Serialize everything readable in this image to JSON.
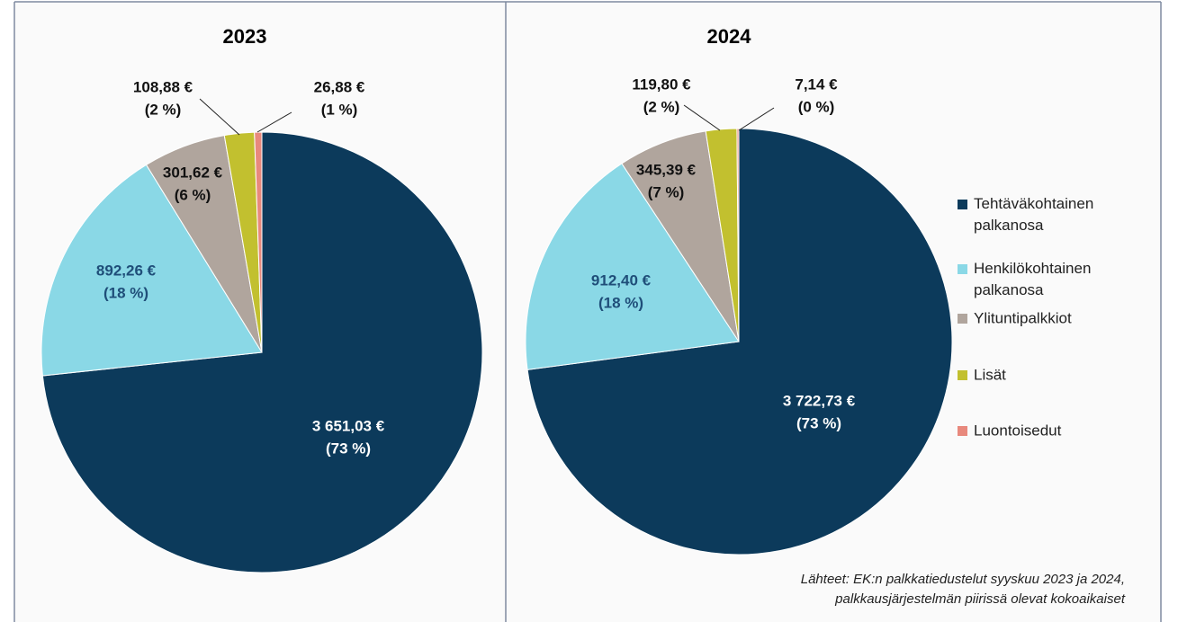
{
  "chart_data": [
    {
      "type": "pie",
      "title": "2023",
      "values": [
        3651.03,
        892.26,
        301.62,
        108.88,
        26.88
      ],
      "value_labels": [
        "3 651,03 €",
        "892,26 €",
        "301,62 €",
        "108,88 €",
        "26,88 €"
      ],
      "percent_labels": [
        "(73 %)",
        "(18 %)",
        "(6 %)",
        "(2 %)",
        "(1 %)"
      ]
    },
    {
      "type": "pie",
      "title": "2024",
      "values": [
        3722.73,
        912.4,
        345.39,
        119.8,
        7.14
      ],
      "value_labels": [
        "3 722,73 €",
        "912,40 €",
        "345,39 €",
        "119,80 €",
        "7,14 €"
      ],
      "percent_labels": [
        "(73 %)",
        "(18 %)",
        "(7 %)",
        "(2 %)",
        "(0 %)"
      ]
    }
  ],
  "legend": {
    "labels": [
      "Tehtäväkohtainen palkanosa",
      "Henkilökohtainen palkanosa",
      "Ylituntipalkkiot",
      "Lisät",
      "Luontoisedut"
    ],
    "colors": [
      "#0c3a5b",
      "#8ad8e6",
      "#b0a59d",
      "#c2c02f",
      "#e8897d"
    ]
  },
  "source": [
    "Lähteet: EK:n palkkatiedustelut syyskuu 2023 ja 2024,",
    "palkkausjärjestelmän piirissä olevat kokoaikaiset"
  ]
}
